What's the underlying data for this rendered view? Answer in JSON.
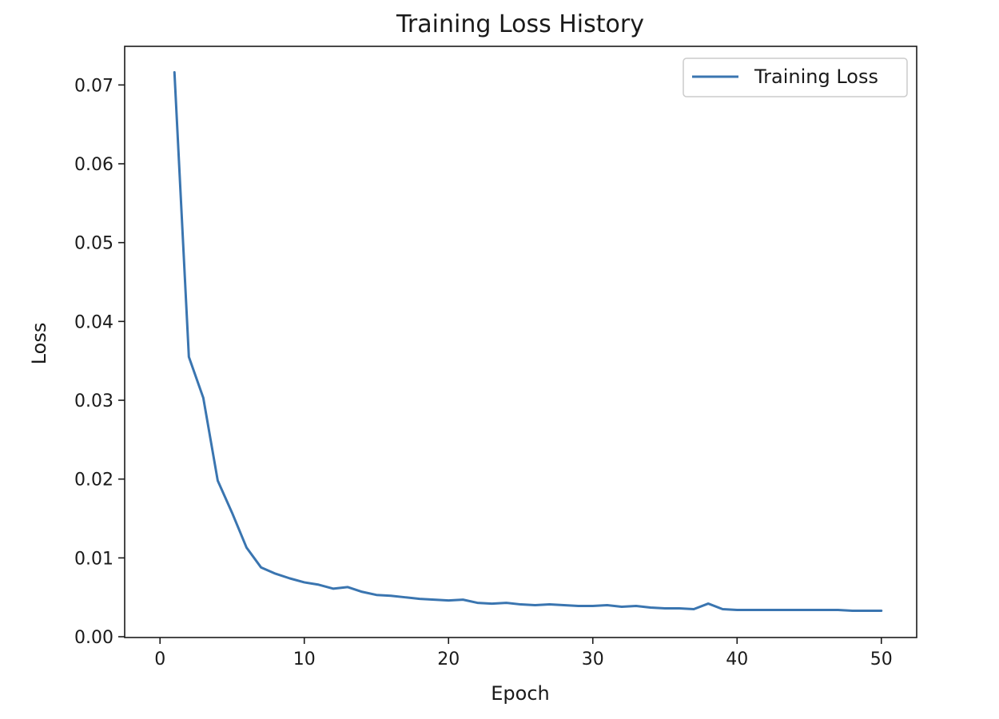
{
  "chart_data": {
    "type": "line",
    "title": "Training Loss History",
    "xlabel": "Epoch",
    "ylabel": "Loss",
    "xlim": [
      -2.45,
      52.45
    ],
    "ylim": [
      -0.0001,
      0.0749
    ],
    "xticks": [
      0,
      10,
      20,
      30,
      40,
      50
    ],
    "xtick_labels": [
      "0",
      "10",
      "20",
      "30",
      "40",
      "50"
    ],
    "yticks": [
      0.0,
      0.01,
      0.02,
      0.03,
      0.04,
      0.05,
      0.06,
      0.07
    ],
    "ytick_labels": [
      "0.00",
      "0.01",
      "0.02",
      "0.03",
      "0.04",
      "0.05",
      "0.06",
      "0.07"
    ],
    "grid": false,
    "legend_position": "top-right",
    "series": [
      {
        "name": "Training Loss",
        "color": "#3a75b0",
        "x": [
          1,
          2,
          3,
          4,
          5,
          6,
          7,
          8,
          9,
          10,
          11,
          12,
          13,
          14,
          15,
          16,
          17,
          18,
          19,
          20,
          21,
          22,
          23,
          24,
          25,
          26,
          27,
          28,
          29,
          30,
          31,
          32,
          33,
          34,
          35,
          36,
          37,
          38,
          39,
          40,
          41,
          42,
          43,
          44,
          45,
          46,
          47,
          48,
          49,
          50
        ],
        "y": [
          0.0716,
          0.0355,
          0.0303,
          0.0198,
          0.0157,
          0.0113,
          0.0088,
          0.008,
          0.0074,
          0.0069,
          0.0066,
          0.0061,
          0.0063,
          0.0057,
          0.0053,
          0.0052,
          0.005,
          0.0048,
          0.0047,
          0.0046,
          0.0047,
          0.0043,
          0.0042,
          0.0043,
          0.0041,
          0.004,
          0.0041,
          0.004,
          0.0039,
          0.0039,
          0.004,
          0.0038,
          0.0039,
          0.0037,
          0.0036,
          0.0036,
          0.0035,
          0.0042,
          0.0035,
          0.0034,
          0.0034,
          0.0034,
          0.0034,
          0.0034,
          0.0034,
          0.0034,
          0.0034,
          0.0033,
          0.0033,
          0.0033
        ]
      }
    ]
  }
}
